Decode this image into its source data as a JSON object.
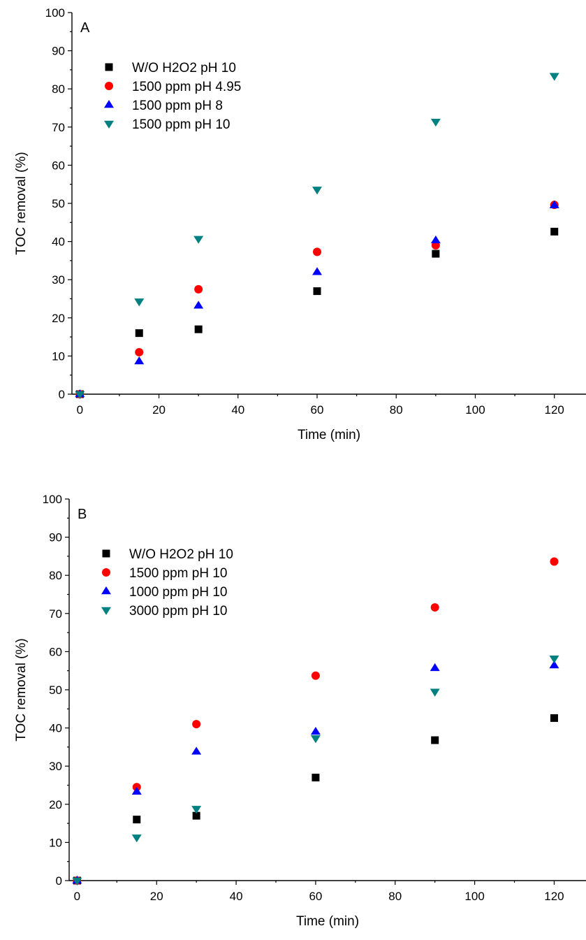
{
  "chart_data": [
    {
      "type": "scatter",
      "panel_label": "A",
      "title": "",
      "xlabel": "Time (min)",
      "ylabel": "TOC removal (%)",
      "xlim": [
        -2,
        128
      ],
      "ylim": [
        0,
        100
      ],
      "xticks": [
        0,
        20,
        40,
        60,
        80,
        100,
        120
      ],
      "yticks": [
        0,
        10,
        20,
        30,
        40,
        50,
        60,
        70,
        80,
        90,
        100
      ],
      "grid": false,
      "legend_position": "top-left",
      "series": [
        {
          "name": "W/O H2O2 pH 10",
          "marker": "square",
          "color": "#000000",
          "x": [
            0,
            15,
            30,
            60,
            90,
            120
          ],
          "y": [
            0,
            16,
            17,
            27,
            36.8,
            42.6
          ]
        },
        {
          "name": "1500 ppm pH 4.95",
          "marker": "circle",
          "color": "#ff0000",
          "x": [
            0,
            15,
            30,
            60,
            90,
            120
          ],
          "y": [
            0,
            11,
            27.5,
            37.3,
            39,
            49.6
          ]
        },
        {
          "name": "1500 ppm pH 8",
          "marker": "triangle-up",
          "color": "#0000ff",
          "x": [
            0,
            15,
            30,
            60,
            90,
            120
          ],
          "y": [
            0,
            8.6,
            23.2,
            32,
            40.3,
            49.5
          ]
        },
        {
          "name": "1500 ppm pH 10",
          "marker": "triangle-down",
          "color": "#008080",
          "x": [
            0,
            15,
            30,
            60,
            90,
            120
          ],
          "y": [
            0,
            24.3,
            40.7,
            53.6,
            71.4,
            83.4
          ]
        }
      ]
    },
    {
      "type": "scatter",
      "panel_label": "B",
      "title": "",
      "xlabel": "Time (min)",
      "ylabel": "TOC removal (%)",
      "xlim": [
        -2,
        128
      ],
      "ylim": [
        0,
        100
      ],
      "xticks": [
        0,
        20,
        40,
        60,
        80,
        100,
        120
      ],
      "yticks": [
        0,
        10,
        20,
        30,
        40,
        50,
        60,
        70,
        80,
        90,
        100
      ],
      "grid": false,
      "legend_position": "top-left",
      "series": [
        {
          "name": "W/O H2O2 pH 10",
          "marker": "square",
          "color": "#000000",
          "x": [
            0,
            15,
            30,
            60,
            90,
            120
          ],
          "y": [
            0,
            16,
            17,
            27,
            36.8,
            42.6
          ]
        },
        {
          "name": "1500 ppm pH 10",
          "marker": "circle",
          "color": "#ff0000",
          "x": [
            0,
            15,
            30,
            60,
            90,
            120
          ],
          "y": [
            0,
            24.5,
            41,
            53.7,
            71.6,
            83.6
          ]
        },
        {
          "name": "1000 ppm pH 10",
          "marker": "triangle-up",
          "color": "#0000ff",
          "x": [
            0,
            15,
            30,
            60,
            90,
            120
          ],
          "y": [
            0,
            23.3,
            33.8,
            39,
            55.7,
            56.4
          ]
        },
        {
          "name": "3000 ppm pH 10",
          "marker": "triangle-down",
          "color": "#008080",
          "x": [
            0,
            15,
            30,
            60,
            90,
            120
          ],
          "y": [
            0,
            11.3,
            18.8,
            37.3,
            49.5,
            58.2
          ]
        }
      ]
    }
  ]
}
